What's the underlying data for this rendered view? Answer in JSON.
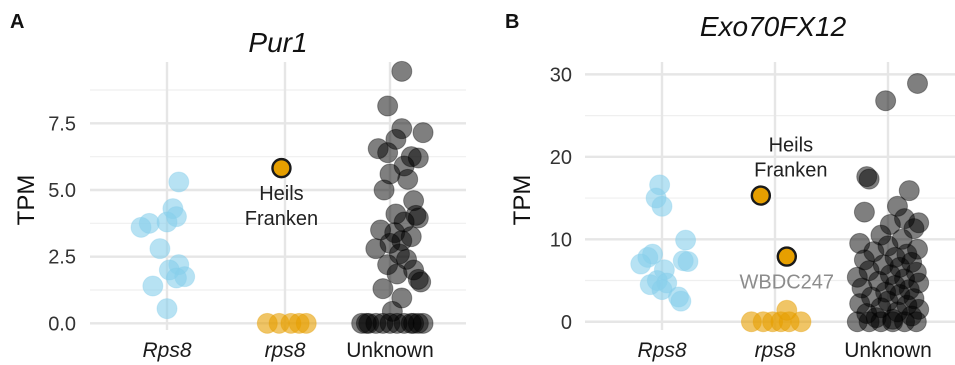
{
  "chart_data": [
    {
      "type": "scatter",
      "panel_label": "A",
      "title": "Pur1",
      "ylabel": "TPM",
      "ylim": [
        -0.25,
        9.8
      ],
      "yticks": [
        0,
        2.5,
        5,
        7.5
      ],
      "ytick_labels": [
        "0.0",
        "2.5",
        "5.0",
        "7.5"
      ],
      "categories": [
        "Rps8",
        "rps8",
        "Unknown"
      ],
      "category_italic": [
        true,
        true,
        false
      ],
      "colors": {
        "Rps8": "#87CEEB",
        "rps8": "#E69F00",
        "Unknown": "#000000"
      },
      "series": [
        {
          "category": "Rps8",
          "points": [
            {
              "dx": -0.22,
              "y": 3.6
            },
            {
              "dx": -0.15,
              "y": 3.75
            },
            {
              "dx": 0.1,
              "y": 5.3
            },
            {
              "dx": 0.05,
              "y": 4.3
            },
            {
              "dx": 0.08,
              "y": 4.0
            },
            {
              "dx": 0.0,
              "y": 3.8
            },
            {
              "dx": -0.06,
              "y": 2.8
            },
            {
              "dx": 0.1,
              "y": 2.2
            },
            {
              "dx": 0.02,
              "y": 2.0
            },
            {
              "dx": 0.15,
              "y": 1.75
            },
            {
              "dx": 0.08,
              "y": 1.7
            },
            {
              "dx": -0.12,
              "y": 1.4
            },
            {
              "dx": 0.0,
              "y": 0.55
            }
          ]
        },
        {
          "category": "rps8",
          "points": [
            {
              "dx": -0.15,
              "y": 0
            },
            {
              "dx": -0.05,
              "y": 0
            },
            {
              "dx": 0.05,
              "y": 0
            },
            {
              "dx": 0.12,
              "y": 0
            },
            {
              "dx": 0.18,
              "y": 0
            }
          ]
        },
        {
          "category": "Unknown",
          "points": [
            {
              "dx": 0.1,
              "y": 9.45
            },
            {
              "dx": -0.02,
              "y": 8.15
            },
            {
              "dx": 0.28,
              "y": 7.15
            },
            {
              "dx": 0.1,
              "y": 7.3
            },
            {
              "dx": 0.05,
              "y": 6.9
            },
            {
              "dx": -0.1,
              "y": 6.55
            },
            {
              "dx": -0.02,
              "y": 6.4
            },
            {
              "dx": 0.18,
              "y": 6.25
            },
            {
              "dx": 0.24,
              "y": 6.2
            },
            {
              "dx": 0.12,
              "y": 5.9
            },
            {
              "dx": 0.0,
              "y": 5.6
            },
            {
              "dx": 0.15,
              "y": 5.4
            },
            {
              "dx": -0.05,
              "y": 5.0
            },
            {
              "dx": 0.2,
              "y": 4.6
            },
            {
              "dx": 0.05,
              "y": 4.1
            },
            {
              "dx": 0.22,
              "y": 4.05
            },
            {
              "dx": 0.24,
              "y": 3.95
            },
            {
              "dx": 0.12,
              "y": 3.8
            },
            {
              "dx": -0.08,
              "y": 3.5
            },
            {
              "dx": 0.04,
              "y": 3.4
            },
            {
              "dx": 0.18,
              "y": 3.25
            },
            {
              "dx": 0.1,
              "y": 3.1
            },
            {
              "dx": 0.0,
              "y": 3.0
            },
            {
              "dx": -0.12,
              "y": 2.8
            },
            {
              "dx": 0.08,
              "y": 2.6
            },
            {
              "dx": 0.14,
              "y": 2.4
            },
            {
              "dx": -0.02,
              "y": 2.2
            },
            {
              "dx": 0.2,
              "y": 2.0
            },
            {
              "dx": 0.06,
              "y": 1.85
            },
            {
              "dx": 0.24,
              "y": 1.65
            },
            {
              "dx": 0.26,
              "y": 1.55
            },
            {
              "dx": -0.06,
              "y": 1.3
            },
            {
              "dx": 0.1,
              "y": 0.95
            },
            {
              "dx": 0.02,
              "y": 0.45
            },
            {
              "dx": -0.24,
              "y": 0
            },
            {
              "dx": -0.18,
              "y": 0
            },
            {
              "dx": -0.12,
              "y": 0
            },
            {
              "dx": -0.06,
              "y": 0
            },
            {
              "dx": 0.0,
              "y": 0
            },
            {
              "dx": 0.06,
              "y": 0
            },
            {
              "dx": 0.12,
              "y": 0
            },
            {
              "dx": 0.18,
              "y": 0
            },
            {
              "dx": 0.24,
              "y": 0
            },
            {
              "dx": 0.28,
              "y": 0
            },
            {
              "dx": -0.2,
              "y": 0
            },
            {
              "dx": 0.2,
              "y": 0
            }
          ]
        }
      ],
      "highlights": [
        {
          "category": "rps8",
          "dx": -0.03,
          "y": 5.82,
          "color": "#E69F00",
          "label": [
            "Heils",
            "Franken"
          ],
          "label_color": "#222222",
          "label_pos": "below"
        }
      ]
    },
    {
      "type": "scatter",
      "panel_label": "B",
      "title": "Exo70FX12",
      "ylabel": "TPM",
      "ylim": [
        -1,
        31.5
      ],
      "yticks": [
        0,
        10,
        20,
        30
      ],
      "ytick_labels": [
        "0",
        "10",
        "20",
        "30"
      ],
      "categories": [
        "Rps8",
        "rps8",
        "Unknown"
      ],
      "category_italic": [
        true,
        true,
        false
      ],
      "colors": {
        "Rps8": "#87CEEB",
        "rps8": "#E69F00",
        "Unknown": "#000000"
      },
      "series": [
        {
          "category": "Rps8",
          "points": [
            {
              "dx": -0.02,
              "y": 16.6
            },
            {
              "dx": -0.05,
              "y": 15.0
            },
            {
              "dx": 0.0,
              "y": 14.0
            },
            {
              "dx": 0.2,
              "y": 9.9
            },
            {
              "dx": -0.08,
              "y": 8.2
            },
            {
              "dx": -0.12,
              "y": 7.8
            },
            {
              "dx": 0.18,
              "y": 7.4
            },
            {
              "dx": 0.22,
              "y": 7.3
            },
            {
              "dx": -0.18,
              "y": 7.0
            },
            {
              "dx": 0.02,
              "y": 6.3
            },
            {
              "dx": -0.04,
              "y": 5.0
            },
            {
              "dx": 0.04,
              "y": 4.7
            },
            {
              "dx": -0.1,
              "y": 4.5
            },
            {
              "dx": 0.0,
              "y": 3.9
            },
            {
              "dx": 0.14,
              "y": 3.0
            },
            {
              "dx": 0.16,
              "y": 2.5
            }
          ]
        },
        {
          "category": "rps8",
          "points": [
            {
              "dx": -0.2,
              "y": 0
            },
            {
              "dx": -0.1,
              "y": 0
            },
            {
              "dx": -0.02,
              "y": 0
            },
            {
              "dx": 0.05,
              "y": 0
            },
            {
              "dx": 0.12,
              "y": 0
            },
            {
              "dx": 0.22,
              "y": 0
            },
            {
              "dx": 0.1,
              "y": 1.4
            }
          ]
        },
        {
          "category": "Unknown",
          "points": [
            {
              "dx": 0.25,
              "y": 28.9
            },
            {
              "dx": -0.02,
              "y": 26.8
            },
            {
              "dx": -0.18,
              "y": 17.6
            },
            {
              "dx": -0.16,
              "y": 17.3
            },
            {
              "dx": 0.18,
              "y": 15.9
            },
            {
              "dx": 0.08,
              "y": 14.0
            },
            {
              "dx": -0.2,
              "y": 13.3
            },
            {
              "dx": 0.14,
              "y": 12.5
            },
            {
              "dx": 0.26,
              "y": 12.0
            },
            {
              "dx": 0.02,
              "y": 11.8
            },
            {
              "dx": 0.22,
              "y": 11.3
            },
            {
              "dx": -0.06,
              "y": 10.5
            },
            {
              "dx": 0.12,
              "y": 10.0
            },
            {
              "dx": -0.24,
              "y": 9.5
            },
            {
              "dx": 0.0,
              "y": 9.2
            },
            {
              "dx": 0.25,
              "y": 8.8
            },
            {
              "dx": -0.12,
              "y": 8.5
            },
            {
              "dx": 0.16,
              "y": 8.2
            },
            {
              "dx": 0.06,
              "y": 7.8
            },
            {
              "dx": -0.2,
              "y": 7.5
            },
            {
              "dx": 0.2,
              "y": 7.2
            },
            {
              "dx": -0.04,
              "y": 6.9
            },
            {
              "dx": 0.1,
              "y": 6.6
            },
            {
              "dx": -0.16,
              "y": 6.2
            },
            {
              "dx": 0.24,
              "y": 6.0
            },
            {
              "dx": 0.02,
              "y": 5.7
            },
            {
              "dx": -0.26,
              "y": 5.4
            },
            {
              "dx": 0.14,
              "y": 5.2
            },
            {
              "dx": -0.08,
              "y": 4.9
            },
            {
              "dx": 0.26,
              "y": 4.7
            },
            {
              "dx": 0.06,
              "y": 4.4
            },
            {
              "dx": -0.22,
              "y": 4.1
            },
            {
              "dx": 0.18,
              "y": 3.9
            },
            {
              "dx": -0.02,
              "y": 3.6
            },
            {
              "dx": 0.1,
              "y": 3.3
            },
            {
              "dx": -0.14,
              "y": 3.0
            },
            {
              "dx": 0.22,
              "y": 2.8
            },
            {
              "dx": 0.0,
              "y": 2.5
            },
            {
              "dx": -0.24,
              "y": 2.2
            },
            {
              "dx": 0.16,
              "y": 2.0
            },
            {
              "dx": -0.06,
              "y": 1.7
            },
            {
              "dx": 0.26,
              "y": 1.5
            },
            {
              "dx": 0.08,
              "y": 1.2
            },
            {
              "dx": -0.18,
              "y": 1.0
            },
            {
              "dx": 0.2,
              "y": 0.7
            },
            {
              "dx": -0.1,
              "y": 0.5
            },
            {
              "dx": 0.04,
              "y": 0.3
            },
            {
              "dx": -0.26,
              "y": 0
            },
            {
              "dx": -0.16,
              "y": 0
            },
            {
              "dx": -0.06,
              "y": 0
            },
            {
              "dx": 0.04,
              "y": 0
            },
            {
              "dx": 0.14,
              "y": 0
            },
            {
              "dx": 0.24,
              "y": 0
            }
          ]
        }
      ],
      "highlights": [
        {
          "category": "rps8",
          "dx": -0.12,
          "y": 15.3,
          "color": "#E69F00",
          "label": [
            "Heils",
            "Franken"
          ],
          "label_color": "#222222",
          "label_pos": "above-right"
        },
        {
          "category": "rps8",
          "dx": 0.1,
          "y": 7.9,
          "color": "#E69F00",
          "label": [
            "WBDC247"
          ],
          "label_color": "#8c8c8c",
          "label_pos": "below"
        }
      ]
    }
  ]
}
